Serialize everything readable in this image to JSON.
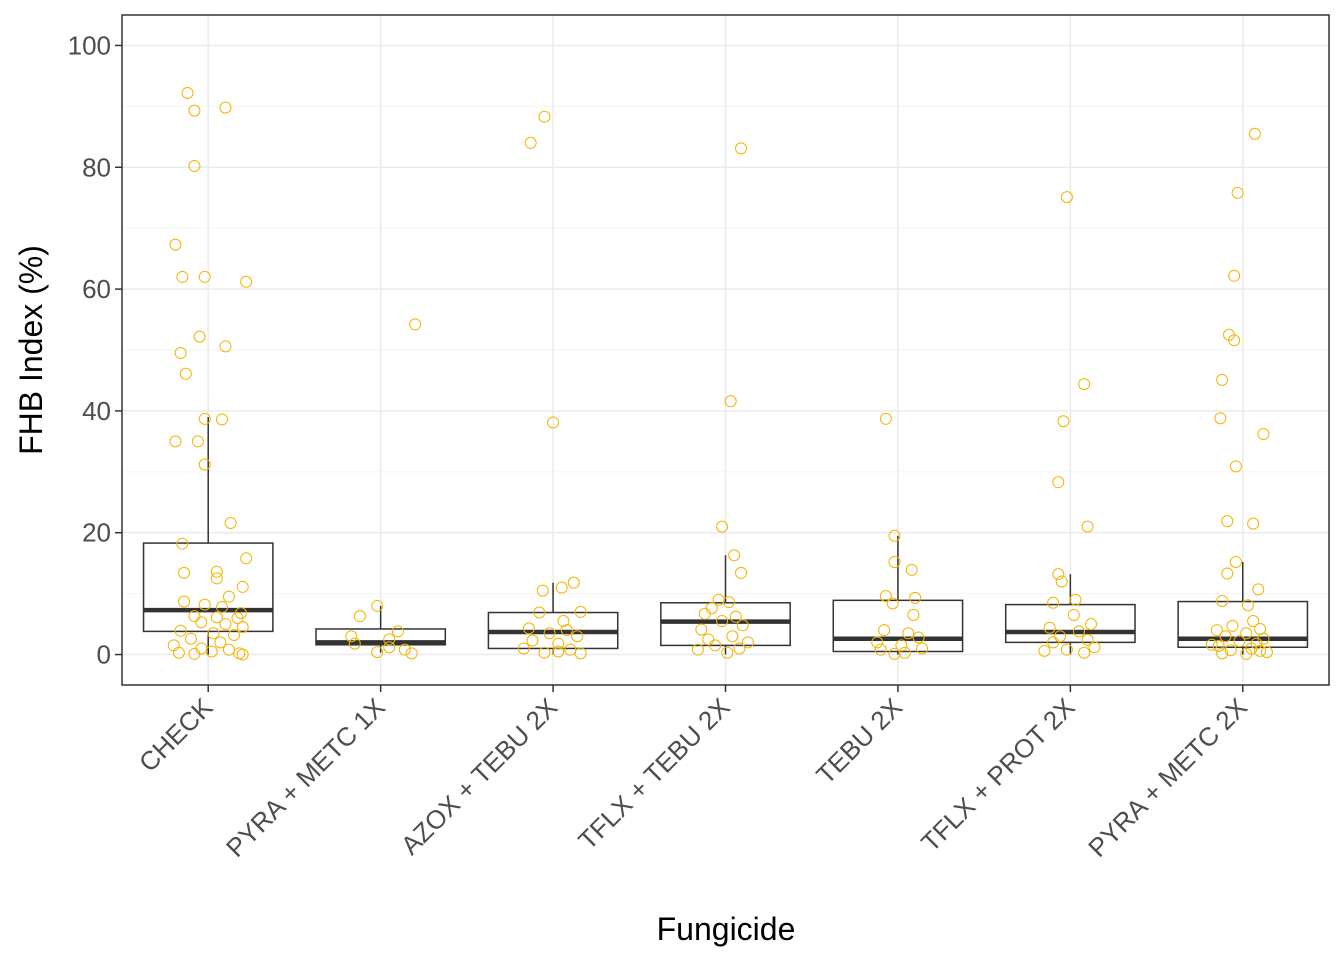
{
  "chart_data": {
    "type": "boxplot",
    "title": "",
    "xlabel": "Fungicide",
    "ylabel": "FHB Index (%)",
    "ylim": [
      -5,
      105
    ],
    "yticks": [
      0,
      20,
      40,
      60,
      80,
      100
    ],
    "ytick_labels": [
      "0",
      "20",
      "40",
      "60",
      "80",
      "100"
    ],
    "grid": true,
    "categories": [
      "CHECK",
      "PYRA + METC 1X",
      "AZOX + TEBU 2X",
      "TFLX + TEBU 2X",
      "TEBU 2X",
      "TFLX + PROT 2X",
      "PYRA + METC 2X"
    ],
    "boxes": [
      {
        "q1": 3.8,
        "median": 7.3,
        "q3": 18.3,
        "whisker_low": 0,
        "whisker_high": 39
      },
      {
        "q1": 1.6,
        "median": 2.0,
        "q3": 4.2,
        "whisker_low": 0.3,
        "whisker_high": 8
      },
      {
        "q1": 1.0,
        "median": 3.7,
        "q3": 6.9,
        "whisker_low": 0,
        "whisker_high": 11.8
      },
      {
        "q1": 1.5,
        "median": 5.4,
        "q3": 8.5,
        "whisker_low": 0,
        "whisker_high": 16.3
      },
      {
        "q1": 0.5,
        "median": 2.6,
        "q3": 8.9,
        "whisker_low": 0,
        "whisker_high": 19.5
      },
      {
        "q1": 2.0,
        "median": 3.7,
        "q3": 8.2,
        "whisker_low": 0,
        "whisker_high": 13.2
      },
      {
        "q1": 1.2,
        "median": 2.6,
        "q3": 8.7,
        "whisker_low": 0,
        "whisker_high": 15.2
      }
    ],
    "points": [
      [
        [
          -0.12,
          92.2
        ],
        [
          0.1,
          89.8
        ],
        [
          -0.08,
          89.3
        ],
        [
          -0.08,
          80.2
        ],
        [
          -0.19,
          67.3
        ],
        [
          -0.15,
          62
        ],
        [
          -0.02,
          62
        ],
        [
          0.22,
          61.2
        ],
        [
          -0.05,
          52.2
        ],
        [
          0.1,
          50.6
        ],
        [
          -0.16,
          49.5
        ],
        [
          -0.13,
          46.1
        ],
        [
          -0.02,
          38.7
        ],
        [
          0.08,
          38.6
        ],
        [
          -0.19,
          35
        ],
        [
          -0.06,
          35
        ],
        [
          -0.02,
          31.2
        ],
        [
          0.13,
          21.6
        ],
        [
          -0.15,
          18.2
        ],
        [
          0.22,
          15.8
        ],
        [
          0.05,
          13.6
        ],
        [
          -0.14,
          13.4
        ],
        [
          0.05,
          12.5
        ],
        [
          0.2,
          11.1
        ],
        [
          -0.14,
          8.7
        ],
        [
          0.12,
          9.5
        ],
        [
          -0.02,
          8.2
        ],
        [
          0.08,
          7.8
        ],
        [
          0.19,
          6.8
        ],
        [
          -0.08,
          6.3
        ],
        [
          0.05,
          6.1
        ],
        [
          0.17,
          6
        ],
        [
          -0.04,
          5.3
        ],
        [
          0.1,
          5
        ],
        [
          0.2,
          4.5
        ],
        [
          -0.16,
          3.9
        ],
        [
          0.03,
          3.5
        ],
        [
          0.15,
          3.2
        ],
        [
          -0.1,
          2.6
        ],
        [
          0.07,
          2
        ],
        [
          -0.2,
          1.5
        ],
        [
          -0.04,
          1
        ],
        [
          0.12,
          0.8
        ],
        [
          -0.17,
          0.3
        ],
        [
          0.18,
          0.2
        ],
        [
          -0.08,
          0.1
        ],
        [
          0.2,
          0
        ],
        [
          0.02,
          0.5
        ]
      ],
      [
        [
          0.2,
          54.2
        ],
        [
          -0.02,
          8
        ],
        [
          -0.12,
          6.3
        ],
        [
          0.1,
          3.8
        ],
        [
          -0.17,
          3
        ],
        [
          0.05,
          2.5
        ],
        [
          -0.15,
          1.8
        ],
        [
          0.05,
          1.2
        ],
        [
          0.14,
          0.8
        ],
        [
          0.18,
          0.2
        ],
        [
          -0.02,
          0.4
        ]
      ],
      [
        [
          -0.05,
          88.3
        ],
        [
          -0.13,
          84
        ],
        [
          0.0,
          38.1
        ],
        [
          0.12,
          11.8
        ],
        [
          0.05,
          11
        ],
        [
          -0.06,
          10.5
        ],
        [
          0.16,
          7
        ],
        [
          -0.08,
          6.9
        ],
        [
          0.06,
          5.5
        ],
        [
          -0.14,
          4.3
        ],
        [
          0.08,
          4
        ],
        [
          -0.02,
          3.5
        ],
        [
          0.14,
          3
        ],
        [
          -0.12,
          2.3
        ],
        [
          0.03,
          1.8
        ],
        [
          -0.17,
          1
        ],
        [
          0.1,
          0.8
        ],
        [
          -0.05,
          0.3
        ],
        [
          0.16,
          0.2
        ],
        [
          0.03,
          0.5
        ]
      ],
      [
        [
          0.09,
          83.1
        ],
        [
          0.03,
          41.6
        ],
        [
          -0.02,
          21
        ],
        [
          0.05,
          16.3
        ],
        [
          0.09,
          13.4
        ],
        [
          -0.04,
          9
        ],
        [
          0.02,
          8.6
        ],
        [
          -0.08,
          7.6
        ],
        [
          -0.12,
          6.7
        ],
        [
          0.06,
          6.2
        ],
        [
          -0.02,
          5.5
        ],
        [
          0.1,
          4.8
        ],
        [
          -0.14,
          4.1
        ],
        [
          0.04,
          3
        ],
        [
          -0.1,
          2.5
        ],
        [
          0.13,
          2
        ],
        [
          -0.06,
          1.5
        ],
        [
          0.08,
          1
        ],
        [
          -0.16,
          0.8
        ],
        [
          0.01,
          0.3
        ]
      ],
      [
        [
          -0.07,
          38.7
        ],
        [
          -0.02,
          19.5
        ],
        [
          -0.02,
          15.2
        ],
        [
          0.08,
          13.9
        ],
        [
          -0.07,
          9.6
        ],
        [
          0.1,
          9.3
        ],
        [
          -0.03,
          8.4
        ],
        [
          0.09,
          6.5
        ],
        [
          -0.08,
          4
        ],
        [
          0.06,
          3.5
        ],
        [
          0.12,
          2.8
        ],
        [
          -0.12,
          2
        ],
        [
          0.02,
          1.5
        ],
        [
          0.14,
          1
        ],
        [
          -0.1,
          0.8
        ],
        [
          0.04,
          0.3
        ],
        [
          -0.02,
          0.1
        ]
      ],
      [
        [
          -0.02,
          75.1
        ],
        [
          0.08,
          44.4
        ],
        [
          -0.04,
          38.3
        ],
        [
          -0.07,
          28.3
        ],
        [
          0.1,
          21
        ],
        [
          -0.07,
          13.2
        ],
        [
          -0.05,
          12
        ],
        [
          0.03,
          9
        ],
        [
          -0.1,
          8.5
        ],
        [
          0.02,
          6.5
        ],
        [
          0.12,
          5
        ],
        [
          -0.12,
          4.4
        ],
        [
          0.05,
          3.8
        ],
        [
          -0.06,
          3
        ],
        [
          0.1,
          2.4
        ],
        [
          -0.1,
          2
        ],
        [
          0.14,
          1.2
        ],
        [
          -0.02,
          0.8
        ],
        [
          0.08,
          0.3
        ],
        [
          -0.15,
          0.6
        ]
      ],
      [
        [
          0.07,
          85.5
        ],
        [
          -0.03,
          75.8
        ],
        [
          -0.05,
          62.2
        ],
        [
          -0.08,
          52.5
        ],
        [
          -0.05,
          51.6
        ],
        [
          -0.12,
          45.1
        ],
        [
          -0.13,
          38.8
        ],
        [
          0.12,
          36.2
        ],
        [
          -0.04,
          30.9
        ],
        [
          -0.09,
          21.9
        ],
        [
          0.06,
          21.5
        ],
        [
          -0.04,
          15.2
        ],
        [
          -0.09,
          13.3
        ],
        [
          0.09,
          10.7
        ],
        [
          -0.12,
          8.8
        ],
        [
          0.03,
          8.1
        ],
        [
          0.06,
          5.5
        ],
        [
          -0.06,
          4.7
        ],
        [
          0.1,
          4.2
        ],
        [
          -0.15,
          4
        ],
        [
          0.02,
          3.5
        ],
        [
          -0.1,
          3
        ],
        [
          0.12,
          2.6
        ],
        [
          -0.02,
          2.2
        ],
        [
          0.08,
          1.8
        ],
        [
          -0.14,
          1.4
        ],
        [
          0.05,
          1
        ],
        [
          -0.07,
          0.7
        ],
        [
          0.14,
          0.4
        ],
        [
          -0.12,
          0.2
        ],
        [
          0.02,
          0.1
        ],
        [
          0.1,
          0.6
        ],
        [
          -0.18,
          1.6
        ]
      ]
    ],
    "colors": {
      "point_stroke": "#F5B400",
      "box_stroke": "#333333",
      "grid_major": "#EBEBEB",
      "grid_minor": "#F5F5F5",
      "panel_border": "#333333"
    }
  }
}
